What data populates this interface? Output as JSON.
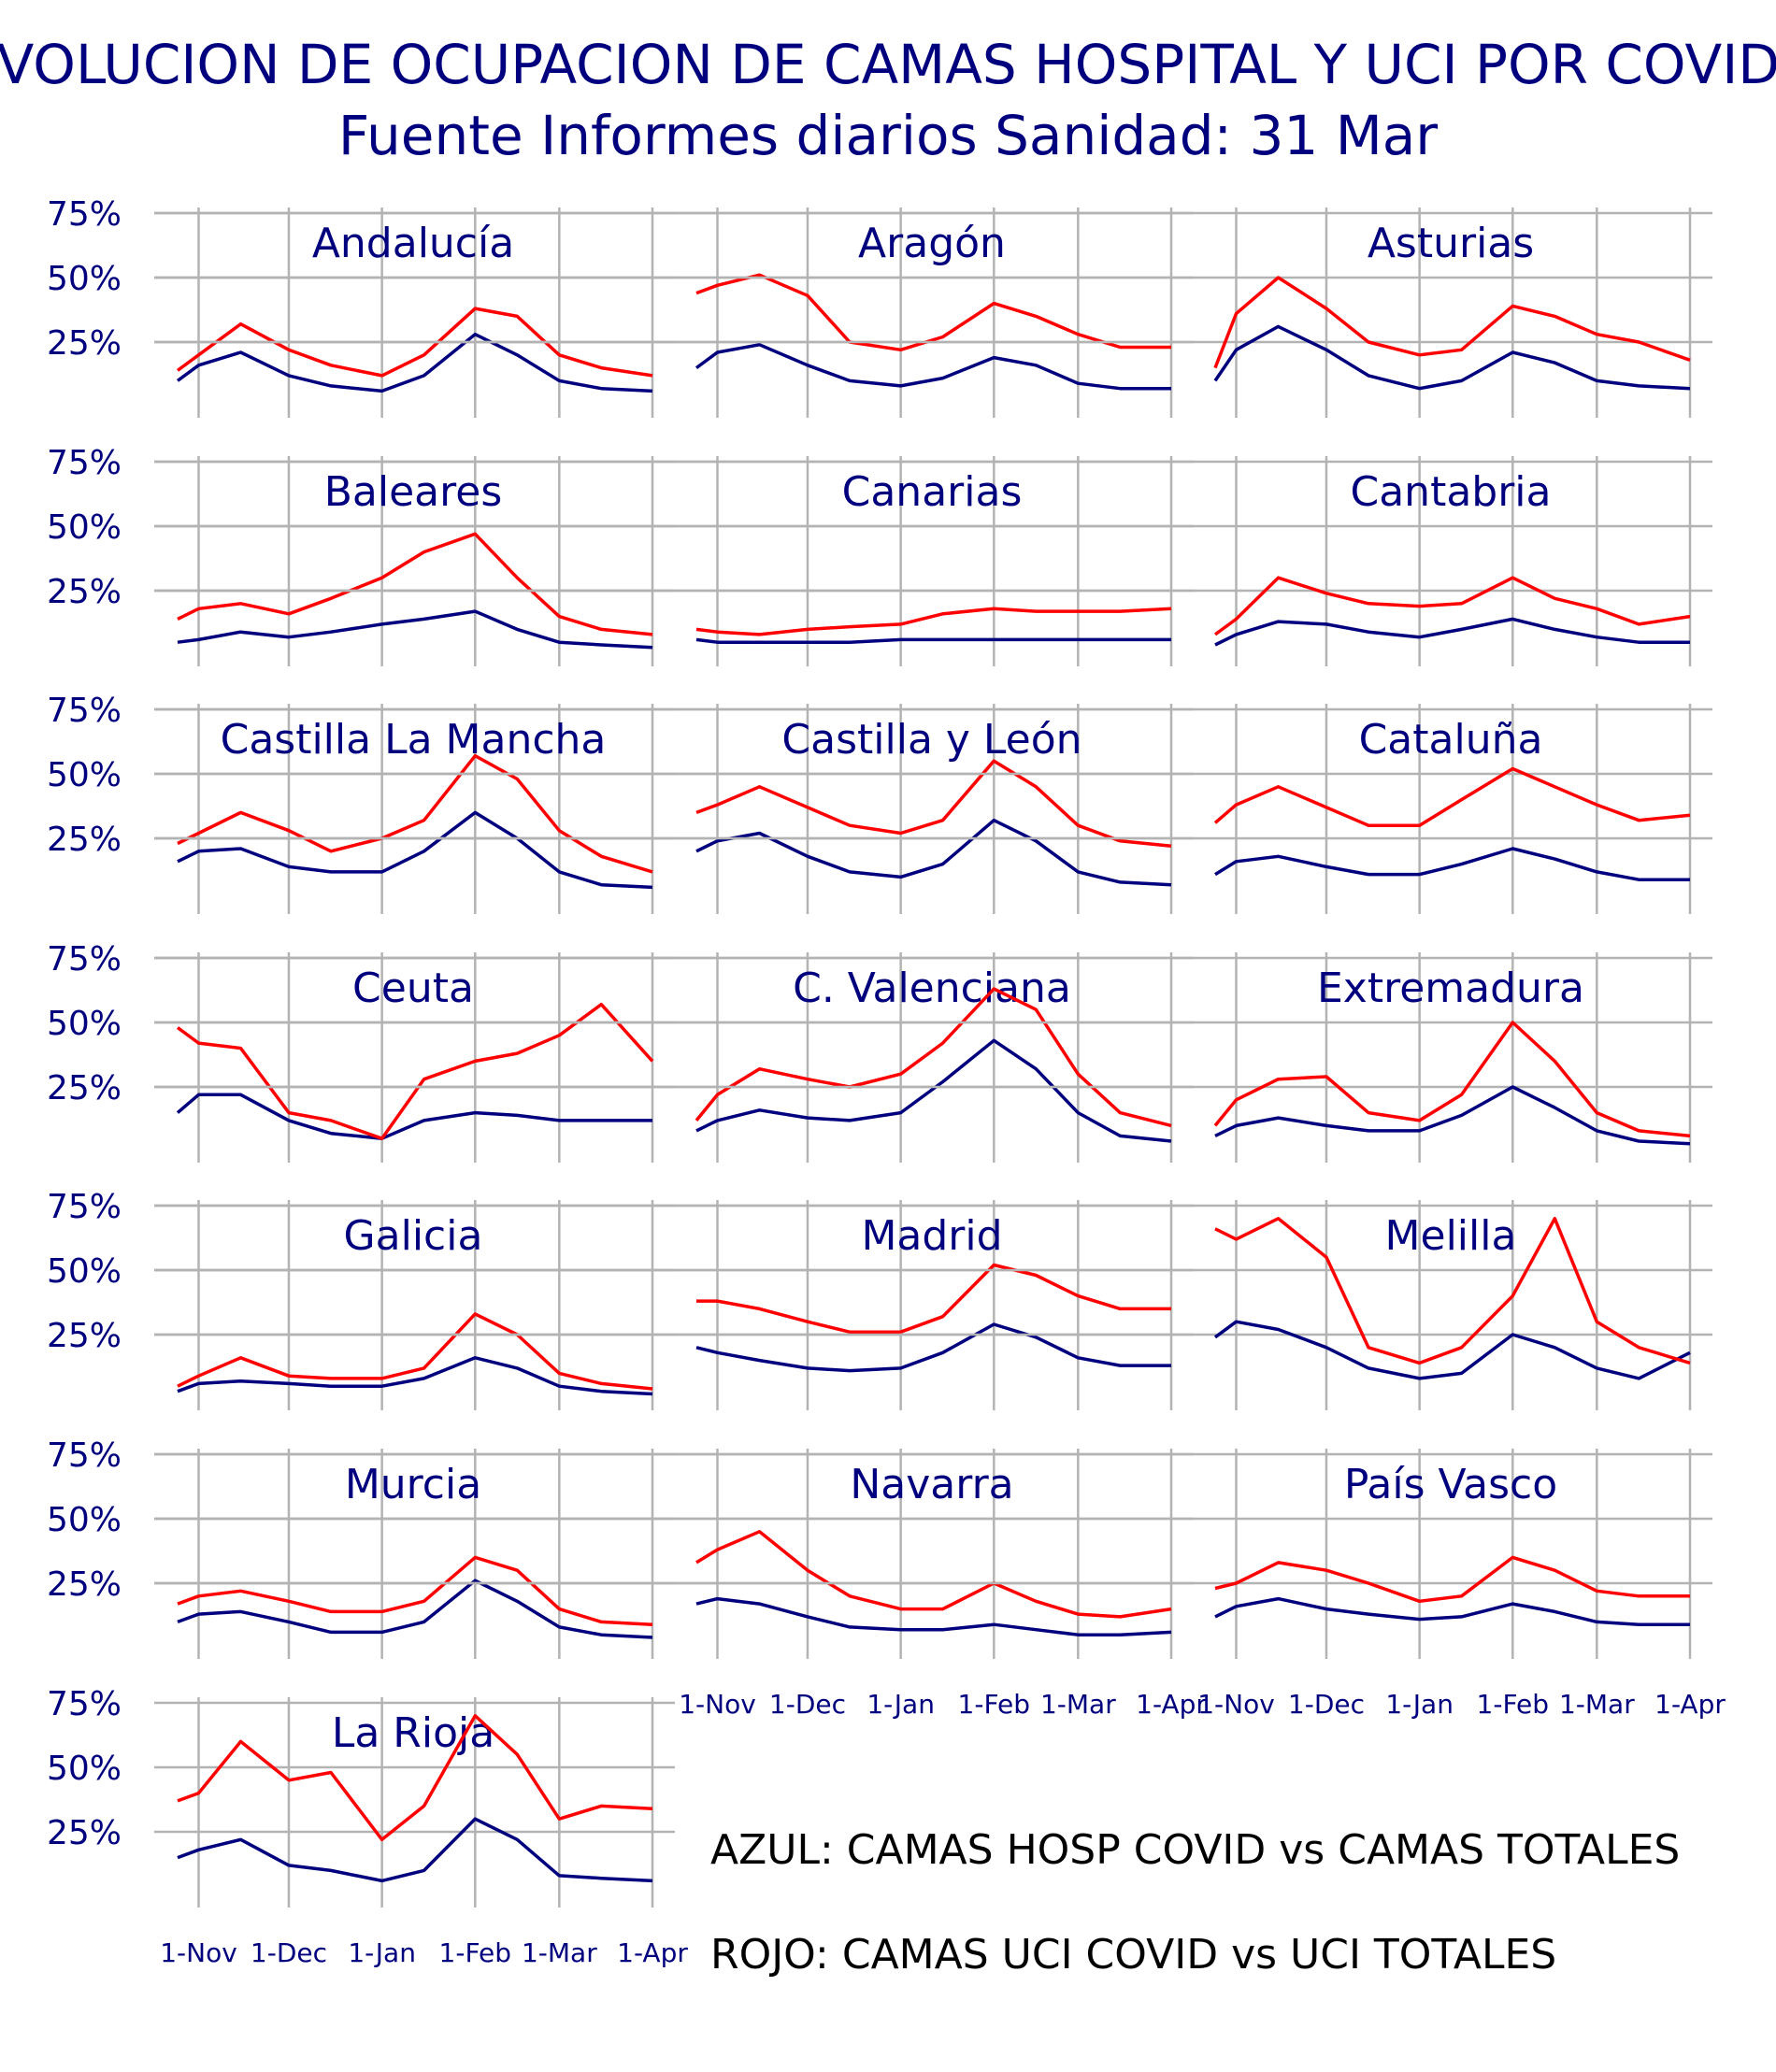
{
  "title": "EVOLUCION DE OCUPACION DE CAMAS HOSPITAL Y UCI POR COVID",
  "subtitle": "Fuente Informes diarios Sanidad: 31 Mar",
  "legend": {
    "blue": "AZUL: CAMAS HOSP COVID vs CAMAS TOTALES",
    "red": "ROJO: CAMAS UCI COVID vs UCI TOTALES"
  },
  "colors": {
    "hosp": "#00007f",
    "uci": "#ff0000",
    "text": "#00007f",
    "grid": "#b3b3b3"
  },
  "chart_data": {
    "type": "line",
    "layout": "small multiples",
    "x_tick_labels": [
      "1-Nov",
      "1-Dec",
      "1-Jan",
      "1-Feb",
      "1-Mar",
      "1-Apr"
    ],
    "y_tick_labels": [
      "25%",
      "50%",
      "75%"
    ],
    "x_range": [
      "2020-10-25",
      "2021-04-01"
    ],
    "y_range": [
      0,
      75
    ],
    "series_meaning": {
      "hosp": "AZUL: CAMAS HOSP COVID vs CAMAS TOTALES",
      "uci": "ROJO: CAMAS UCI COVID vs UCI TOTALES"
    },
    "anchor_dates": [
      "2020-10-25",
      "2020-11-01",
      "2020-11-15",
      "2020-12-01",
      "2020-12-15",
      "2021-01-01",
      "2021-01-15",
      "2021-02-01",
      "2021-02-15",
      "2021-03-01",
      "2021-03-15",
      "2021-04-01"
    ],
    "regions": [
      {
        "name": "Andalucía",
        "uci": [
          14,
          20,
          32,
          22,
          16,
          12,
          20,
          38,
          35,
          20,
          15,
          12
        ],
        "hosp": [
          10,
          16,
          21,
          12,
          8,
          6,
          12,
          28,
          20,
          10,
          7,
          6
        ]
      },
      {
        "name": "Aragón",
        "uci": [
          44,
          47,
          51,
          43,
          25,
          22,
          27,
          40,
          35,
          28,
          23,
          23
        ],
        "hosp": [
          15,
          21,
          24,
          16,
          10,
          8,
          11,
          19,
          16,
          9,
          7,
          7
        ]
      },
      {
        "name": "Asturias",
        "uci": [
          15,
          36,
          50,
          38,
          25,
          20,
          22,
          39,
          35,
          28,
          25,
          18
        ],
        "hosp": [
          10,
          22,
          31,
          22,
          12,
          7,
          10,
          21,
          17,
          10,
          8,
          7
        ]
      },
      {
        "name": "Baleares",
        "uci": [
          14,
          18,
          20,
          16,
          22,
          30,
          40,
          47,
          30,
          15,
          10,
          8
        ],
        "hosp": [
          5,
          6,
          9,
          7,
          9,
          12,
          14,
          17,
          10,
          5,
          4,
          3
        ]
      },
      {
        "name": "Canarias",
        "uci": [
          10,
          9,
          8,
          10,
          11,
          12,
          16,
          18,
          17,
          17,
          17,
          18
        ],
        "hosp": [
          6,
          5,
          5,
          5,
          5,
          6,
          6,
          6,
          6,
          6,
          6,
          6
        ]
      },
      {
        "name": "Cantabria",
        "uci": [
          8,
          14,
          30,
          24,
          20,
          19,
          20,
          30,
          22,
          18,
          12,
          15
        ],
        "hosp": [
          4,
          8,
          13,
          12,
          9,
          7,
          10,
          14,
          10,
          7,
          5,
          5
        ]
      },
      {
        "name": "Castilla La Mancha",
        "uci": [
          23,
          27,
          35,
          28,
          20,
          25,
          32,
          57,
          48,
          28,
          18,
          12
        ],
        "hosp": [
          16,
          20,
          21,
          14,
          12,
          12,
          20,
          35,
          25,
          12,
          7,
          6
        ]
      },
      {
        "name": "Castilla y León",
        "uci": [
          35,
          38,
          45,
          37,
          30,
          27,
          32,
          55,
          45,
          30,
          24,
          22
        ],
        "hosp": [
          20,
          24,
          27,
          18,
          12,
          10,
          15,
          32,
          24,
          12,
          8,
          7
        ]
      },
      {
        "name": "Cataluña",
        "uci": [
          31,
          38,
          45,
          37,
          30,
          30,
          40,
          52,
          45,
          38,
          32,
          34
        ],
        "hosp": [
          11,
          16,
          18,
          14,
          11,
          11,
          15,
          21,
          17,
          12,
          9,
          9
        ]
      },
      {
        "name": "Ceuta",
        "uci": [
          48,
          42,
          40,
          15,
          12,
          5,
          28,
          35,
          38,
          45,
          57,
          35
        ],
        "hosp": [
          15,
          22,
          22,
          12,
          7,
          5,
          12,
          15,
          14,
          12,
          12,
          12
        ]
      },
      {
        "name": "C. Valenciana",
        "uci": [
          12,
          22,
          32,
          28,
          25,
          30,
          42,
          63,
          55,
          30,
          15,
          10
        ],
        "hosp": [
          8,
          12,
          16,
          13,
          12,
          15,
          27,
          43,
          32,
          15,
          6,
          4
        ]
      },
      {
        "name": "Extremadura",
        "uci": [
          10,
          20,
          28,
          29,
          15,
          12,
          22,
          50,
          35,
          15,
          8,
          6
        ],
        "hosp": [
          6,
          10,
          13,
          10,
          8,
          8,
          14,
          25,
          17,
          8,
          4,
          3
        ]
      },
      {
        "name": "Galicia",
        "uci": [
          5,
          9,
          16,
          9,
          8,
          8,
          12,
          33,
          25,
          10,
          6,
          4
        ],
        "hosp": [
          3,
          6,
          7,
          6,
          5,
          5,
          8,
          16,
          12,
          5,
          3,
          2
        ]
      },
      {
        "name": "Madrid",
        "uci": [
          38,
          38,
          35,
          30,
          26,
          26,
          32,
          52,
          48,
          40,
          35,
          35
        ],
        "hosp": [
          20,
          18,
          15,
          12,
          11,
          12,
          18,
          29,
          24,
          16,
          13,
          13
        ]
      },
      {
        "name": "Melilla",
        "uci": [
          66,
          62,
          70,
          55,
          20,
          14,
          20,
          40,
          70,
          30,
          20,
          14
        ],
        "hosp": [
          24,
          30,
          27,
          20,
          12,
          8,
          10,
          25,
          20,
          12,
          8,
          18
        ]
      },
      {
        "name": "Murcia",
        "uci": [
          17,
          20,
          22,
          18,
          14,
          14,
          18,
          35,
          30,
          15,
          10,
          9
        ],
        "hosp": [
          10,
          13,
          14,
          10,
          6,
          6,
          10,
          26,
          18,
          8,
          5,
          4
        ]
      },
      {
        "name": "Navarra",
        "uci": [
          33,
          38,
          45,
          30,
          20,
          15,
          15,
          25,
          18,
          13,
          12,
          15
        ],
        "hosp": [
          17,
          19,
          17,
          12,
          8,
          7,
          7,
          9,
          7,
          5,
          5,
          6
        ]
      },
      {
        "name": "País Vasco",
        "uci": [
          23,
          25,
          33,
          30,
          25,
          18,
          20,
          35,
          30,
          22,
          20,
          20
        ],
        "hosp": [
          12,
          16,
          19,
          15,
          13,
          11,
          12,
          17,
          14,
          10,
          9,
          9
        ]
      },
      {
        "name": "La Rioja",
        "uci": [
          37,
          40,
          60,
          45,
          48,
          22,
          35,
          70,
          55,
          30,
          35,
          34
        ],
        "hosp": [
          15,
          18,
          22,
          12,
          10,
          6,
          10,
          30,
          22,
          8,
          7,
          6
        ]
      }
    ]
  }
}
